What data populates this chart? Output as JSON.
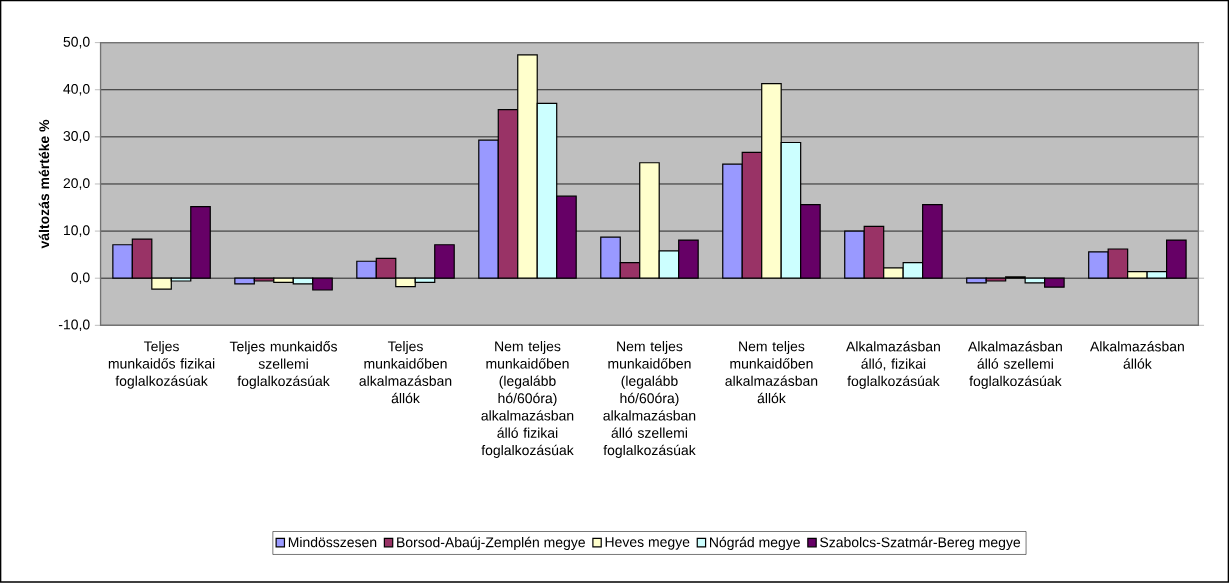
{
  "chart_data": {
    "type": "bar",
    "ylabel": "változás mértéke %",
    "categories": [
      "Teljes munkaidős fizikai foglalkozásúak",
      "Teljes munkaidős szellemi foglalkozásúak",
      "Teljes munkaidőben alkalmazásban állók",
      "Nem teljes munkaidőben (legalább hó/60óra) alkalmazásban álló fizikai foglalkozásúak",
      "Nem teljes munkaidőben (legalább hó/60óra) alkalmazásban álló szellemi foglalkozásúak",
      "Nem teljes munkaidőben alkalmazásban állók",
      "Alkalmazásban álló, fizikai foglalkozásúak",
      "Alkalmazásban álló szellemi foglalkozásúak",
      "Alkalmazásban állók"
    ],
    "series": [
      {
        "name": "Mindösszesen",
        "color": "#9999ff",
        "values": [
          7.1,
          -1.2,
          3.6,
          29.3,
          8.7,
          24.2,
          10.0,
          -1.0,
          5.6
        ]
      },
      {
        "name": "Borsod-Abaúj-Zemplén megye",
        "color": "#993366",
        "values": [
          8.3,
          -0.6,
          4.2,
          35.8,
          3.3,
          26.7,
          11.0,
          -0.6,
          6.2
        ]
      },
      {
        "name": "Heves megye",
        "color": "#ffffcc",
        "values": [
          -2.3,
          -0.9,
          -1.8,
          47.4,
          24.5,
          41.3,
          2.2,
          0.3,
          1.4
        ]
      },
      {
        "name": "Nógrád megye",
        "color": "#ccffff",
        "values": [
          -0.6,
          -1.2,
          -0.9,
          37.1,
          5.8,
          28.8,
          3.3,
          -1.0,
          1.4
        ]
      },
      {
        "name": "Szabolcs-Szatmár-Bereg megye",
        "color": "#660066",
        "values": [
          15.2,
          -2.5,
          7.1,
          17.4,
          8.1,
          15.6,
          15.6,
          -1.9,
          8.1
        ]
      }
    ],
    "ylim": [
      -10,
      50
    ],
    "yticks": [
      {
        "value": -10,
        "label": "-10,0"
      },
      {
        "value": 0,
        "label": "0,0"
      },
      {
        "value": 10,
        "label": "10,0"
      },
      {
        "value": 20,
        "label": "20,0"
      },
      {
        "value": 30,
        "label": "30,0"
      },
      {
        "value": 40,
        "label": "40,0"
      },
      {
        "value": 50,
        "label": "50,0"
      }
    ],
    "grid": "y",
    "legend": "bottom"
  }
}
